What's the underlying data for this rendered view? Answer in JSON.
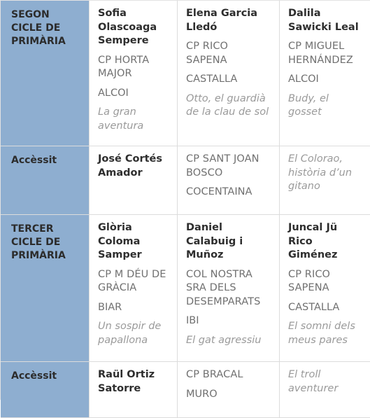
{
  "rows": [
    {
      "category": "SEGON CICLE DE PRIMÀRIA",
      "cells": [
        {
          "name": "Sofia Olascoaga Sempere",
          "school": "CP HORTA MAJOR",
          "town": "ALCOI",
          "title": "La gran aventura"
        },
        {
          "name": "Elena Garcia Lledó",
          "school": "CP RICO SAPENA",
          "town": "CASTALLA",
          "title": "Otto, el guardià de la clau de sol"
        },
        {
          "name": "Dalila Sawicki Leal",
          "school": "CP MIGUEL HERNÁNDEZ",
          "town": "ALCOI",
          "title": "Budy, el gosset"
        }
      ]
    },
    {
      "category": "Accèssit",
      "cells": [
        {
          "name": "José Cortés Amador"
        },
        {
          "school": "CP SANT JOAN BOSCO",
          "town": "COCENTAINA"
        },
        {
          "title": "El Colorao, història d’un gitano"
        }
      ]
    },
    {
      "category": "TERCER CICLE DE PRIMÀRIA",
      "cells": [
        {
          "name": "Glòria Coloma Samper",
          "school": "CP M DÉU DE GRÀCIA",
          "town": "BIAR",
          "title": "Un sospir de papallona"
        },
        {
          "name": "Daniel Calabuig i Muñoz",
          "school": "COL NOSTRA SRA DELS DESEMPARATS",
          "town": "IBI",
          "title": "El gat agressiu"
        },
        {
          "name": "Juncal Jü Rico Giménez",
          "school": "CP RICO SAPENA",
          "town": "CASTALLA",
          "title": "El somni dels meus pares"
        }
      ]
    },
    {
      "category": "Accèssit",
      "cells": [
        {
          "name": "Raül Ortiz Satorre"
        },
        {
          "school": "CP BRACAL",
          "town": "MURO"
        },
        {
          "title": "El troll aventurer"
        }
      ]
    }
  ]
}
